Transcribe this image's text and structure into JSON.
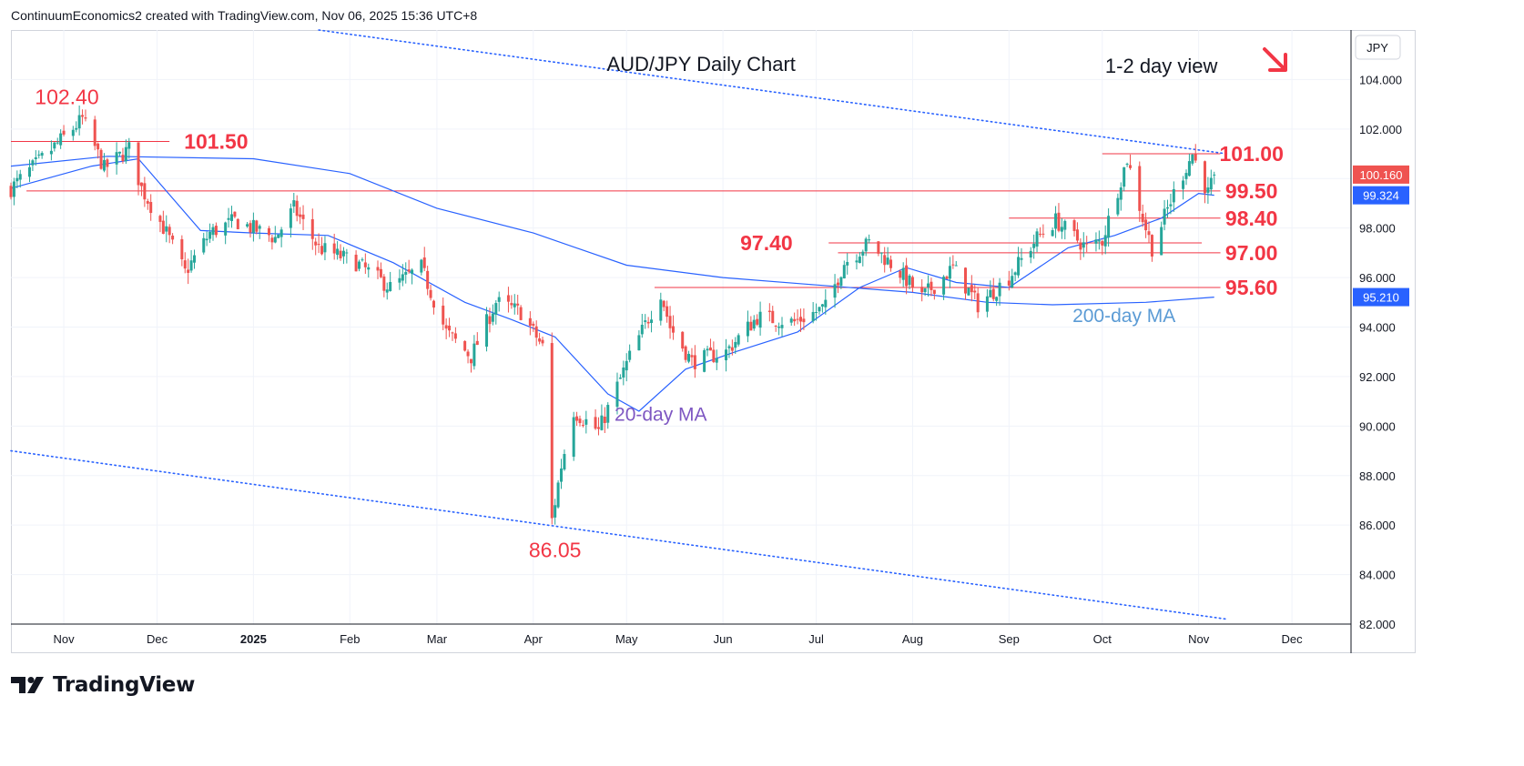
{
  "header": {
    "attribution": "ContinuumEconomics2 created with TradingView.com, Nov 06, 2025 15:36 UTC+8"
  },
  "footer": {
    "brand": "TradingView"
  },
  "colors": {
    "up": "#26a69a",
    "down": "#ef5350",
    "level": "#f23645",
    "ma": "#2962ff",
    "ma_label": "#5b9bd5",
    "ma20_label": "#7e57c2",
    "grid": "#f0f3fa",
    "text": "#131722"
  },
  "chart_data": {
    "type": "candlestick",
    "title": "AUD/JPY Daily Chart",
    "view_note": "1-2 day view",
    "view_arrow": "down-right-arrow",
    "currency": "JPY",
    "ylim": [
      82,
      106
    ],
    "y_ticks": [
      "104.000",
      "102.000",
      "100.000",
      "98.000",
      "96.000",
      "94.000",
      "92.000",
      "90.000",
      "88.000",
      "86.000",
      "84.000",
      "82.000"
    ],
    "x_range": [
      "2024-10-15",
      "2025-12-20"
    ],
    "x_ticks": [
      {
        "label": "Nov",
        "date": "2024-11-01",
        "bold": false
      },
      {
        "label": "Dec",
        "date": "2024-12-01",
        "bold": false
      },
      {
        "label": "2025",
        "date": "2025-01-01",
        "bold": true
      },
      {
        "label": "Feb",
        "date": "2025-02-01",
        "bold": false
      },
      {
        "label": "Mar",
        "date": "2025-03-01",
        "bold": false
      },
      {
        "label": "Apr",
        "date": "2025-04-01",
        "bold": false
      },
      {
        "label": "May",
        "date": "2025-05-01",
        "bold": false
      },
      {
        "label": "Jun",
        "date": "2025-06-01",
        "bold": false
      },
      {
        "label": "Jul",
        "date": "2025-07-01",
        "bold": false
      },
      {
        "label": "Aug",
        "date": "2025-08-01",
        "bold": false
      },
      {
        "label": "Sep",
        "date": "2025-09-01",
        "bold": false
      },
      {
        "label": "Oct",
        "date": "2025-10-01",
        "bold": false
      },
      {
        "label": "Nov",
        "date": "2025-11-01",
        "bold": false
      },
      {
        "label": "Dec",
        "date": "2025-12-01",
        "bold": false
      }
    ],
    "price_path": [
      [
        "2024-10-15",
        99.6
      ],
      [
        "2024-10-25",
        100.8
      ],
      [
        "2024-11-07",
        102.4
      ],
      [
        "2024-11-14",
        100.4
      ],
      [
        "2024-11-22",
        101.2
      ],
      [
        "2024-11-26",
        99.6
      ],
      [
        "2024-12-04",
        97.8
      ],
      [
        "2024-12-10",
        96.2
      ],
      [
        "2024-12-18",
        97.8
      ],
      [
        "2024-12-26",
        98.3
      ],
      [
        "2025-01-08",
        97.6
      ],
      [
        "2025-01-14",
        98.8
      ],
      [
        "2025-01-22",
        97.2
      ],
      [
        "2025-02-03",
        96.6
      ],
      [
        "2025-02-14",
        95.6
      ],
      [
        "2025-02-24",
        96.4
      ],
      [
        "2025-03-04",
        93.8
      ],
      [
        "2025-03-12",
        92.8
      ],
      [
        "2025-03-20",
        95.0
      ],
      [
        "2025-03-28",
        94.6
      ],
      [
        "2025-04-04",
        93.2
      ],
      [
        "2025-04-07",
        86.2
      ],
      [
        "2025-04-10",
        88.4
      ],
      [
        "2025-04-14",
        90.6
      ],
      [
        "2025-04-22",
        89.8
      ],
      [
        "2025-05-02",
        92.8
      ],
      [
        "2025-05-12",
        95.4
      ],
      [
        "2025-05-15",
        94.0
      ],
      [
        "2025-05-22",
        92.6
      ],
      [
        "2025-06-02",
        93.0
      ],
      [
        "2025-06-12",
        94.4
      ],
      [
        "2025-06-24",
        94.2
      ],
      [
        "2025-07-04",
        94.8
      ],
      [
        "2025-07-10",
        96.6
      ],
      [
        "2025-07-18",
        97.4
      ],
      [
        "2025-07-28",
        96.2
      ],
      [
        "2025-08-04",
        95.2
      ],
      [
        "2025-08-14",
        96.4
      ],
      [
        "2025-08-22",
        94.9
      ],
      [
        "2025-09-01",
        96.0
      ],
      [
        "2025-09-10",
        97.6
      ],
      [
        "2025-09-16",
        98.3
      ],
      [
        "2025-09-26",
        97.2
      ],
      [
        "2025-10-01",
        97.5
      ],
      [
        "2025-10-09",
        100.8
      ],
      [
        "2025-10-14",
        98.4
      ],
      [
        "2025-10-17",
        97.2
      ],
      [
        "2025-10-24",
        99.4
      ],
      [
        "2025-10-30",
        101.0
      ],
      [
        "2025-11-04",
        99.4
      ],
      [
        "2025-11-06",
        100.16
      ]
    ],
    "series": [
      {
        "name": "20-day MA",
        "label_date": "2025-05-12",
        "label_price": 90.5,
        "points": [
          [
            "2024-10-15",
            99.6
          ],
          [
            "2024-11-10",
            100.5
          ],
          [
            "2024-11-25",
            100.8
          ],
          [
            "2024-12-15",
            97.9
          ],
          [
            "2025-01-01",
            97.8
          ],
          [
            "2025-01-25",
            97.7
          ],
          [
            "2025-02-15",
            96.6
          ],
          [
            "2025-03-10",
            95.0
          ],
          [
            "2025-03-25",
            94.3
          ],
          [
            "2025-04-08",
            93.6
          ],
          [
            "2025-04-25",
            91.3
          ],
          [
            "2025-05-05",
            90.6
          ],
          [
            "2025-05-20",
            92.3
          ],
          [
            "2025-06-05",
            93.0
          ],
          [
            "2025-06-25",
            93.8
          ],
          [
            "2025-07-15",
            95.6
          ],
          [
            "2025-07-30",
            96.4
          ],
          [
            "2025-08-15",
            95.8
          ],
          [
            "2025-09-01",
            95.6
          ],
          [
            "2025-09-20",
            97.2
          ],
          [
            "2025-10-05",
            97.7
          ],
          [
            "2025-10-20",
            98.4
          ],
          [
            "2025-11-01",
            99.4
          ],
          [
            "2025-11-06",
            99.324
          ]
        ]
      },
      {
        "name": "200-day MA",
        "label_date": "2025-10-08",
        "label_price": 94.5,
        "points": [
          [
            "2024-10-15",
            100.5
          ],
          [
            "2024-11-15",
            100.9
          ],
          [
            "2025-01-01",
            100.8
          ],
          [
            "2025-02-01",
            100.2
          ],
          [
            "2025-03-01",
            98.8
          ],
          [
            "2025-04-01",
            97.8
          ],
          [
            "2025-05-01",
            96.5
          ],
          [
            "2025-06-01",
            96.0
          ],
          [
            "2025-07-01",
            95.7
          ],
          [
            "2025-08-01",
            95.4
          ],
          [
            "2025-08-25",
            95.0
          ],
          [
            "2025-09-15",
            94.9
          ],
          [
            "2025-10-15",
            95.0
          ],
          [
            "2025-11-06",
            95.21
          ]
        ]
      }
    ],
    "price_badges": [
      {
        "value": "100.160",
        "price": 100.16,
        "color": "#ef5350"
      },
      {
        "value": "99.324",
        "price": 99.324,
        "color": "#2962ff"
      },
      {
        "value": "95.210",
        "price": 95.21,
        "color": "#2962ff"
      }
    ],
    "levels": [
      {
        "label": "102.40",
        "price": 102.4,
        "line": false,
        "label_date": "2024-11-02",
        "label_price": 103.3
      },
      {
        "label": "101.50",
        "price": 101.5,
        "line": true,
        "from": "2024-10-15",
        "to": "2024-12-05",
        "label_date": "2024-12-20",
        "label_price": 101.5
      },
      {
        "label": "101.00",
        "price": 101.0,
        "line": true,
        "from": "2025-10-01",
        "to": "2025-11-08",
        "label_date": "2025-11-18",
        "label_price": 101.0
      },
      {
        "label": "99.50",
        "price": 99.5,
        "line": true,
        "from": "2024-10-20",
        "to": "2025-11-08",
        "label_date": "2025-11-18",
        "label_price": 99.5
      },
      {
        "label": "98.40",
        "price": 98.4,
        "line": true,
        "from": "2025-09-01",
        "to": "2025-11-08",
        "label_date": "2025-11-18",
        "label_price": 98.4
      },
      {
        "label": "97.40",
        "price": 97.4,
        "line": true,
        "from": "2025-07-05",
        "to": "2025-11-02",
        "label_date": "2025-06-15",
        "label_price": 97.4
      },
      {
        "label": "97.00",
        "price": 97.0,
        "line": true,
        "from": "2025-07-08",
        "to": "2025-11-08",
        "label_date": "2025-11-18",
        "label_price": 97.0
      },
      {
        "label": "95.60",
        "price": 95.6,
        "line": true,
        "from": "2025-05-10",
        "to": "2025-11-08",
        "label_date": "2025-11-18",
        "label_price": 95.6
      },
      {
        "label": "86.05",
        "price": 86.05,
        "line": false,
        "label_date": "2025-04-08",
        "label_price": 85.0
      }
    ],
    "trendlines": [
      {
        "from": [
          "2025-01-22",
          106.0
        ],
        "to": [
          "2025-11-10",
          101.0
        ]
      },
      {
        "from": [
          "2024-10-15",
          89.0
        ],
        "to": [
          "2025-11-10",
          82.2
        ]
      }
    ]
  }
}
